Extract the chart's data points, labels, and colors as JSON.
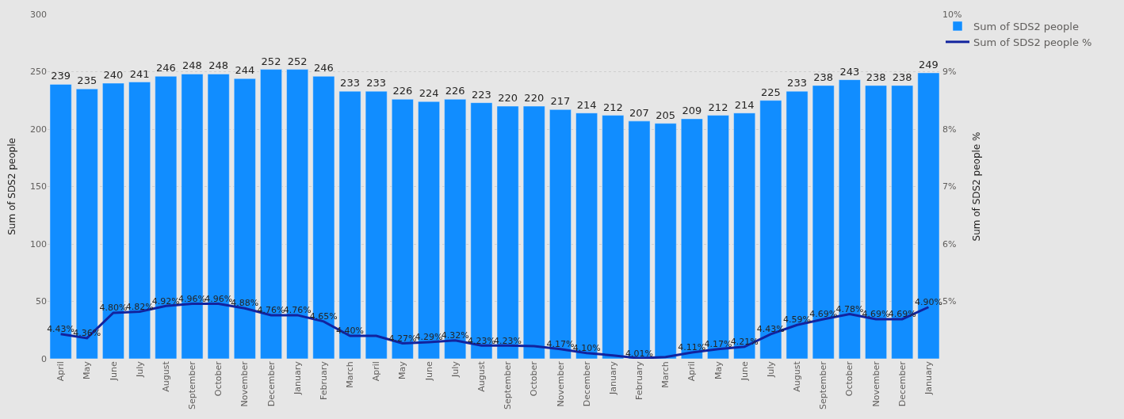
{
  "chart_data": {
    "type": "bar",
    "categories": [
      "April",
      "May",
      "June",
      "July",
      "August",
      "September",
      "October",
      "November",
      "December",
      "January",
      "February",
      "March",
      "April",
      "May",
      "June",
      "July",
      "August",
      "September",
      "October",
      "November",
      "December",
      "January",
      "February",
      "March",
      "April",
      "May",
      "June",
      "July",
      "August",
      "September",
      "October",
      "November",
      "December",
      "January"
    ],
    "series": [
      {
        "name": "Sum of SDS2 people",
        "color": "#118dff",
        "values": [
          239,
          235,
          240,
          241,
          246,
          248,
          248,
          244,
          252,
          252,
          246,
          233,
          233,
          226,
          224,
          226,
          223,
          220,
          220,
          217,
          214,
          212,
          207,
          205,
          209,
          212,
          214,
          225,
          233,
          238,
          243,
          238,
          238,
          249
        ]
      },
      {
        "name": "Sum of SDS2 people %",
        "type": "line",
        "axis": "y2",
        "color": "#12239e",
        "values": [
          4.43,
          4.36,
          4.8,
          4.82,
          4.92,
          4.96,
          4.96,
          4.88,
          4.76,
          4.76,
          4.65,
          4.4,
          4.4,
          4.27,
          4.29,
          4.32,
          4.23,
          4.23,
          4.22,
          4.17,
          4.1,
          4.06,
          4.01,
          4.03,
          4.11,
          4.17,
          4.21,
          4.43,
          4.59,
          4.69,
          4.78,
          4.69,
          4.69,
          4.9
        ],
        "value_labels": [
          "4.43%",
          "4.36%",
          "4.80%",
          "4.82%",
          "4.92%",
          "4.96%",
          "4.96%",
          "4.88%",
          "4.76%",
          "4.76%",
          "4.65%",
          "4.40%",
          null,
          "4.27%",
          "4.29%",
          "4.32%",
          "4.23%",
          "4.23%",
          null,
          "4.17%",
          "4.10%",
          null,
          "4.01%",
          null,
          "4.11%",
          "4.17%",
          "4.21%",
          "4.43%",
          "4.59%",
          "4.69%",
          "4.78%",
          "4.69%",
          "4.69%",
          "4.90%"
        ]
      }
    ],
    "ylabel": "Sum of SDS2 people",
    "y2label": "Sum of SDS2 people %",
    "ylim": [
      0,
      300
    ],
    "yticks": [
      0,
      50,
      100,
      150,
      200,
      250,
      300
    ],
    "y2lim": [
      4,
      10
    ],
    "y2ticks": [
      {
        "value": 5,
        "label": "5%"
      },
      {
        "value": 6,
        "label": "6%"
      },
      {
        "value": 7,
        "label": "7%"
      },
      {
        "value": 8,
        "label": "8%"
      },
      {
        "value": 9,
        "label": "9%"
      },
      {
        "value": 10,
        "label": "10%"
      }
    ],
    "data_labels": true,
    "grid": "y",
    "legend": "top right",
    "marker": "none",
    "line_style": "solid"
  }
}
